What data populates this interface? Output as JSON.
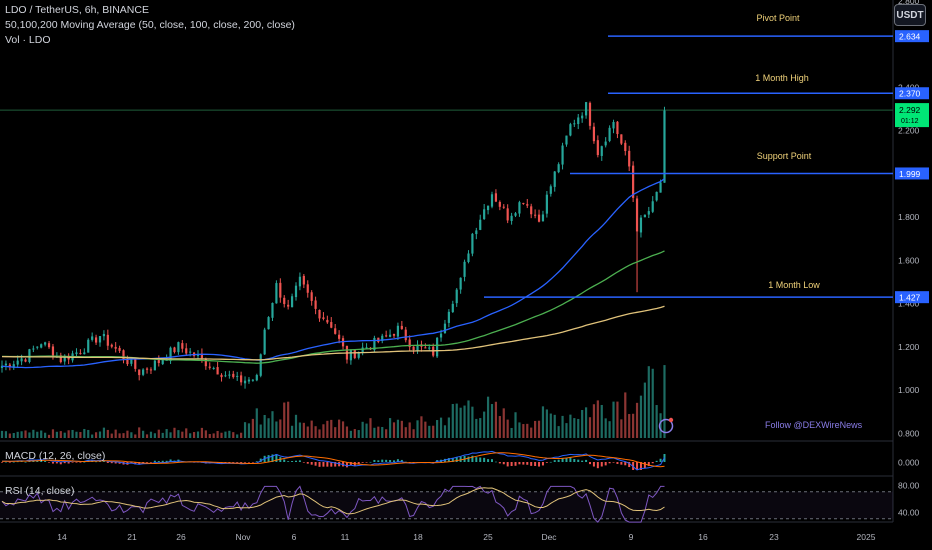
{
  "header": {
    "symbol": "LDO / TetherUS, 6h, BINANCE",
    "ma_label": "50,100,200 Moving Average (50, close, 100, close, 200, close)",
    "vol_label": "Vol · LDO"
  },
  "currency_button": "USDT",
  "watermark": "Follow @DEXWireNews",
  "annotations": {
    "pivot": {
      "label": "Pivot Point",
      "price": 2.634,
      "tag": "2.634"
    },
    "month_high": {
      "label": "1 Month High",
      "price": 2.37,
      "tag": "2.370"
    },
    "support": {
      "label": "Support Point",
      "price": 1.999,
      "tag": "1.999"
    },
    "month_low": {
      "label": "1 Month Low",
      "price": 1.427,
      "tag": "1.427"
    }
  },
  "current_price_tag": {
    "value": "2.292",
    "sub": "01:12"
  },
  "colors": {
    "up": "#26a69a",
    "down": "#ef5350",
    "ma50": "#2962ff",
    "ma100": "#4caf50",
    "ma200": "#e0c27a",
    "annotation_line": "#2962ff",
    "annotation_text": "#f0d27a",
    "macd": "#2962ff",
    "signal": "#ff6d00",
    "rsi": "#e0c27a",
    "price_tag": "#00e676"
  },
  "chart_data": {
    "type": "candlestick",
    "y_ticks": [
      "2.800",
      "2.400",
      "2.200",
      "1.800",
      "1.600",
      "1.400",
      "1.200",
      "1.000",
      "0.800"
    ],
    "ylim": [
      0.8,
      2.7
    ],
    "x_ticks": [
      "14",
      "21",
      "26",
      "Nov",
      "6",
      "11",
      "18",
      "25",
      "Dec",
      "9",
      "16",
      "23",
      "2025"
    ],
    "macd": {
      "label": "MACD (12, 26, close)",
      "y_ticks": [
        "0.000"
      ]
    },
    "rsi": {
      "label": "RSI (14, close)",
      "y_ticks": [
        "80.00",
        "40.00"
      ],
      "bands": [
        70,
        30
      ]
    },
    "price_anchors": [
      [
        0,
        1.11
      ],
      [
        6,
        1.15
      ],
      [
        10,
        1.22
      ],
      [
        15,
        1.14
      ],
      [
        20,
        1.18
      ],
      [
        25,
        1.25
      ],
      [
        30,
        1.17
      ],
      [
        35,
        1.08
      ],
      [
        40,
        1.13
      ],
      [
        45,
        1.2
      ],
      [
        50,
        1.15
      ],
      [
        55,
        1.09
      ],
      [
        60,
        1.04
      ],
      [
        65,
        1.05
      ],
      [
        67,
        1.28
      ],
      [
        70,
        1.48
      ],
      [
        73,
        1.37
      ],
      [
        76,
        1.5
      ],
      [
        80,
        1.37
      ],
      [
        84,
        1.3
      ],
      [
        88,
        1.15
      ],
      [
        92,
        1.19
      ],
      [
        97,
        1.23
      ],
      [
        101,
        1.28
      ],
      [
        105,
        1.2
      ],
      [
        110,
        1.17
      ],
      [
        114,
        1.38
      ],
      [
        117,
        1.5
      ],
      [
        120,
        1.72
      ],
      [
        125,
        1.91
      ],
      [
        129,
        1.8
      ],
      [
        133,
        1.88
      ],
      [
        137,
        1.78
      ],
      [
        142,
        2.05
      ],
      [
        145,
        2.22
      ],
      [
        149,
        2.31
      ],
      [
        152,
        2.1
      ],
      [
        156,
        2.24
      ],
      [
        160,
        2.03
      ],
      [
        162,
        1.75
      ],
      [
        166,
        1.85
      ],
      [
        168,
        1.96
      ],
      [
        169,
        2.29
      ]
    ],
    "volume_anchors": [
      [
        0,
        0.08
      ],
      [
        30,
        0.12
      ],
      [
        60,
        0.12
      ],
      [
        65,
        0.35
      ],
      [
        70,
        0.55
      ],
      [
        80,
        0.2
      ],
      [
        110,
        0.25
      ],
      [
        120,
        0.6
      ],
      [
        130,
        0.3
      ],
      [
        145,
        0.4
      ],
      [
        160,
        0.7
      ],
      [
        169,
        0.9
      ]
    ]
  }
}
